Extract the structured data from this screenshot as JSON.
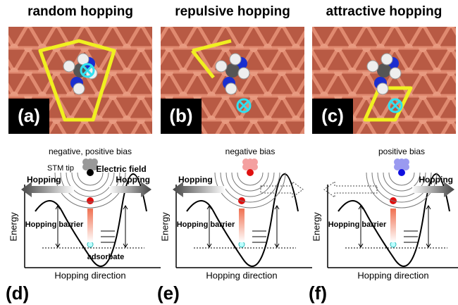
{
  "top_panels": [
    {
      "title": "random hopping",
      "label": "(a)"
    },
    {
      "title": "repulsive hopping",
      "label": "(b)"
    },
    {
      "title": "attractive hopping",
      "label": "(c)"
    }
  ],
  "bottom_panels": [
    {
      "label": "(d)",
      "bias": "negative, positive bias",
      "stm_tip": "STM tip",
      "electric_field": "Electric field",
      "hopping_left": "Hopping",
      "hopping_right": "Hopping",
      "hopping_barrier": "Hopping barrier",
      "adsorbate": "adsorbate",
      "energy": "Energy",
      "x_axis": "Hopping direction"
    },
    {
      "label": "(e)",
      "bias": "negative bias",
      "hopping_left": "Hopping",
      "hopping_barrier": "Hopping barrier",
      "energy": "Energy",
      "x_axis": "Hopping direction"
    },
    {
      "label": "(f)",
      "bias": "positive bias",
      "hopping_right": "Hopping",
      "hopping_barrier": "Hopping barrier",
      "energy": "Energy",
      "x_axis": "Hopping direction"
    }
  ]
}
